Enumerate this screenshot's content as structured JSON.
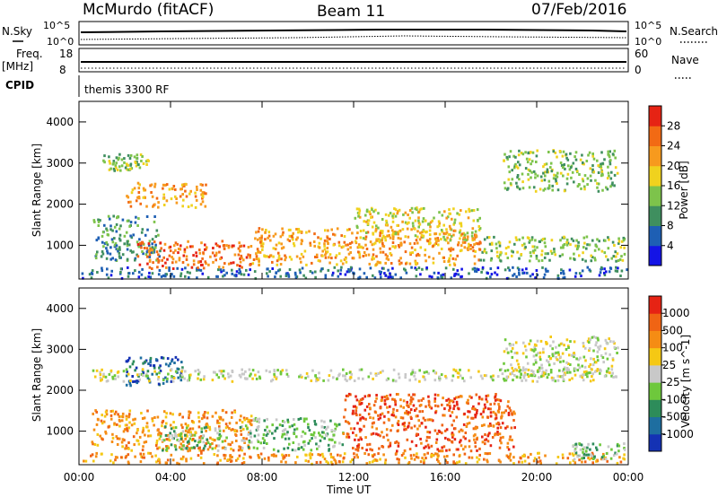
{
  "header": {
    "station": "McMurdo (fitACF)",
    "beam": "Beam 11",
    "date": "07/Feb/2016"
  },
  "top_panels": {
    "sky_label": "N.Sky",
    "search_label": "N.Search",
    "freq_label_1": "Freq.",
    "freq_label_2": "[MHz]",
    "nave_label": "Nave",
    "cpid_label": "CPID",
    "cpid_value": "themis 3300 RF",
    "noise_ticks": [
      "10^5",
      "10^0"
    ],
    "freq_ticks": [
      "18",
      "8"
    ],
    "nave_ticks": [
      "60",
      "0"
    ]
  },
  "chart_data": [
    {
      "type": "heatmap",
      "panel": "power",
      "ylabel": "Slant Range [km]",
      "xlabel": "",
      "x_range_hours": [
        0,
        24
      ],
      "ylim": [
        180,
        4500
      ],
      "y_ticks": [
        "1000",
        "2000",
        "3000",
        "4000"
      ],
      "colorbar_title": "Power [dB]",
      "colorbar_ticks": [
        "4",
        "8",
        "12",
        "16",
        "20",
        "24",
        "28"
      ],
      "colorbar_colors": [
        "#1414e6",
        "#1e5fb4",
        "#3f8f5f",
        "#7dc34b",
        "#f0d21e",
        "#f79a1e",
        "#f26a14",
        "#e62314"
      ],
      "bands": [
        {
          "t": [
            0.1,
            23.9
          ],
          "r": [
            180,
            450
          ],
          "level": 1
        },
        {
          "t": [
            0.6,
            3.5
          ],
          "r": [
            600,
            1700
          ],
          "level": 2
        },
        {
          "t": [
            2.5,
            7.5
          ],
          "r": [
            420,
            1100
          ],
          "level": 6
        },
        {
          "t": [
            7.5,
            17.5
          ],
          "r": [
            500,
            1400
          ],
          "level": 5
        },
        {
          "t": [
            12.0,
            17.5
          ],
          "r": [
            1100,
            1900
          ],
          "level": 4
        },
        {
          "t": [
            2.0,
            5.5
          ],
          "r": [
            1900,
            2500
          ],
          "level": 5
        },
        {
          "t": [
            17.5,
            23.8
          ],
          "r": [
            600,
            1200
          ],
          "level": 3
        },
        {
          "t": [
            18.5,
            23.5
          ],
          "r": [
            2300,
            3300
          ],
          "level": 3
        },
        {
          "t": [
            1.0,
            3.0
          ],
          "r": [
            2800,
            3200
          ],
          "level": 3
        }
      ]
    },
    {
      "type": "heatmap",
      "panel": "velocity",
      "ylabel": "Slant Range [km]",
      "xlabel": "Time UT",
      "x_range_hours": [
        0,
        24
      ],
      "x_ticks": [
        "00:00",
        "04:00",
        "08:00",
        "12:00",
        "16:00",
        "20:00",
        "00:00"
      ],
      "ylim": [
        180,
        4500
      ],
      "y_ticks": [
        "1000",
        "2000",
        "3000",
        "4000"
      ],
      "colorbar_title": "Velocity [m s^-1]",
      "colorbar_ticks": [
        "1000",
        "500",
        "100",
        "25",
        "-25",
        "-100",
        "-500",
        "-1000"
      ],
      "colorbar_colors": [
        "#1432b4",
        "#1e6ea0",
        "#2d8c5a",
        "#6ec83c",
        "#c8c8c8",
        "#f5c814",
        "#f58c14",
        "#f06414",
        "#e62314"
      ],
      "bands": [
        {
          "t": [
            0.1,
            23.9
          ],
          "r": [
            180,
            450
          ],
          "level": 6
        },
        {
          "t": [
            0.5,
            7.5
          ],
          "r": [
            500,
            1500
          ],
          "level": 6
        },
        {
          "t": [
            3.5,
            6.5
          ],
          "r": [
            500,
            1100
          ],
          "level": 3
        },
        {
          "t": [
            2.0,
            4.5
          ],
          "r": [
            2100,
            2800
          ],
          "level": 1
        },
        {
          "t": [
            7.0,
            11.5
          ],
          "r": [
            500,
            1300
          ],
          "level": 3
        },
        {
          "t": [
            11.5,
            19.0
          ],
          "r": [
            500,
            1900
          ],
          "level": 7
        },
        {
          "t": [
            18.5,
            23.5
          ],
          "r": [
            2300,
            3300
          ],
          "level": 4
        },
        {
          "t": [
            21.5,
            23.8
          ],
          "r": [
            300,
            700
          ],
          "level": 3
        },
        {
          "t": [
            0.5,
            23.5
          ],
          "r": [
            2200,
            2500
          ],
          "level": 4
        }
      ]
    }
  ]
}
